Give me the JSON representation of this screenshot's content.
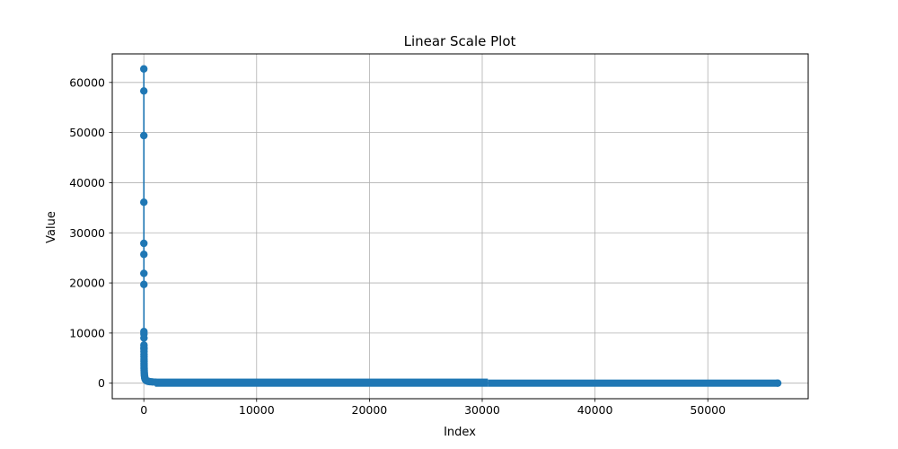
{
  "chart_data": {
    "type": "line",
    "title": "Linear Scale Plot",
    "xlabel": "Index",
    "ylabel": "Value",
    "xlim": [
      -2800,
      58900
    ],
    "ylim": [
      -3100,
      65700
    ],
    "xticks": [
      0,
      10000,
      20000,
      30000,
      40000,
      50000
    ],
    "yticks": [
      0,
      10000,
      20000,
      30000,
      40000,
      50000,
      60000
    ],
    "xtick_labels": [
      "0",
      "10000",
      "20000",
      "30000",
      "40000",
      "50000"
    ],
    "ytick_labels": [
      "0",
      "10000",
      "20000",
      "30000",
      "40000",
      "50000",
      "60000"
    ],
    "grid": true,
    "marker": "circle",
    "series_color": "#1f77b4",
    "series": [
      {
        "x": [
          0,
          1,
          2,
          3,
          4,
          5,
          6,
          7,
          8,
          9,
          10,
          11,
          12,
          13,
          14,
          15,
          16,
          17,
          18,
          19,
          20,
          22,
          25,
          30,
          35,
          40,
          50,
          60,
          75,
          90,
          110,
          140,
          180,
          230,
          300,
          400,
          550,
          750,
          1000
        ],
        "values": [
          62700,
          58300,
          49400,
          36100,
          27900,
          25700,
          21900,
          19700,
          10300,
          9800,
          9000,
          7600,
          7100,
          6800,
          6300,
          5800,
          5300,
          4800,
          4400,
          4000,
          3600,
          3200,
          2900,
          2600,
          2300,
          2000,
          1700,
          1450,
          1200,
          1000,
          850,
          700,
          600,
          500,
          420,
          350,
          300,
          250,
          200
        ],
        "tail_x_range": [
          1000,
          56200
        ],
        "tail_value_start": 200,
        "tail_value_end": 5,
        "tail_step_at_x": 30500
      }
    ]
  }
}
